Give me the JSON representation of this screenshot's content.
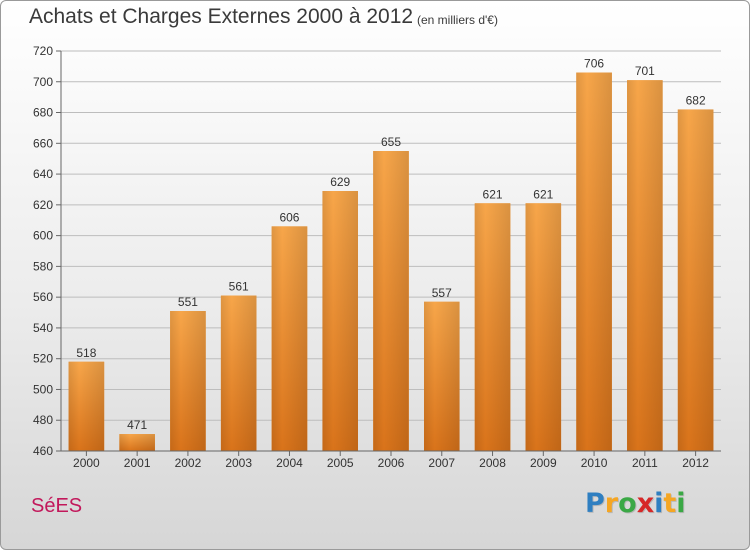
{
  "header": {
    "title": "Achats et Charges Externes 2000 à 2012",
    "unit": "(en milliers d'€)"
  },
  "footer": {
    "commune": "SéES",
    "logo": [
      "P",
      "r",
      "o",
      "x",
      "i",
      "t",
      "i"
    ],
    "logo_colors": [
      "#2f7fc1",
      "#f5a623",
      "#3aa845",
      "#d62828",
      "#2f7fc1",
      "#f5a623",
      "#3aa845"
    ]
  },
  "chart_data": {
    "type": "bar",
    "title": "Achats et Charges Externes 2000 à 2012",
    "categories": [
      "2000",
      "2001",
      "2002",
      "2003",
      "2004",
      "2005",
      "2006",
      "2007",
      "2008",
      "2009",
      "2010",
      "2011",
      "2012"
    ],
    "values": [
      518,
      471,
      551,
      561,
      606,
      629,
      655,
      557,
      621,
      621,
      706,
      701,
      682
    ],
    "ylim": [
      460,
      720
    ],
    "yticks": [
      460,
      480,
      500,
      520,
      540,
      560,
      580,
      600,
      620,
      640,
      660,
      680,
      700,
      720
    ],
    "grid": true,
    "bar_color": "#f0922e"
  }
}
